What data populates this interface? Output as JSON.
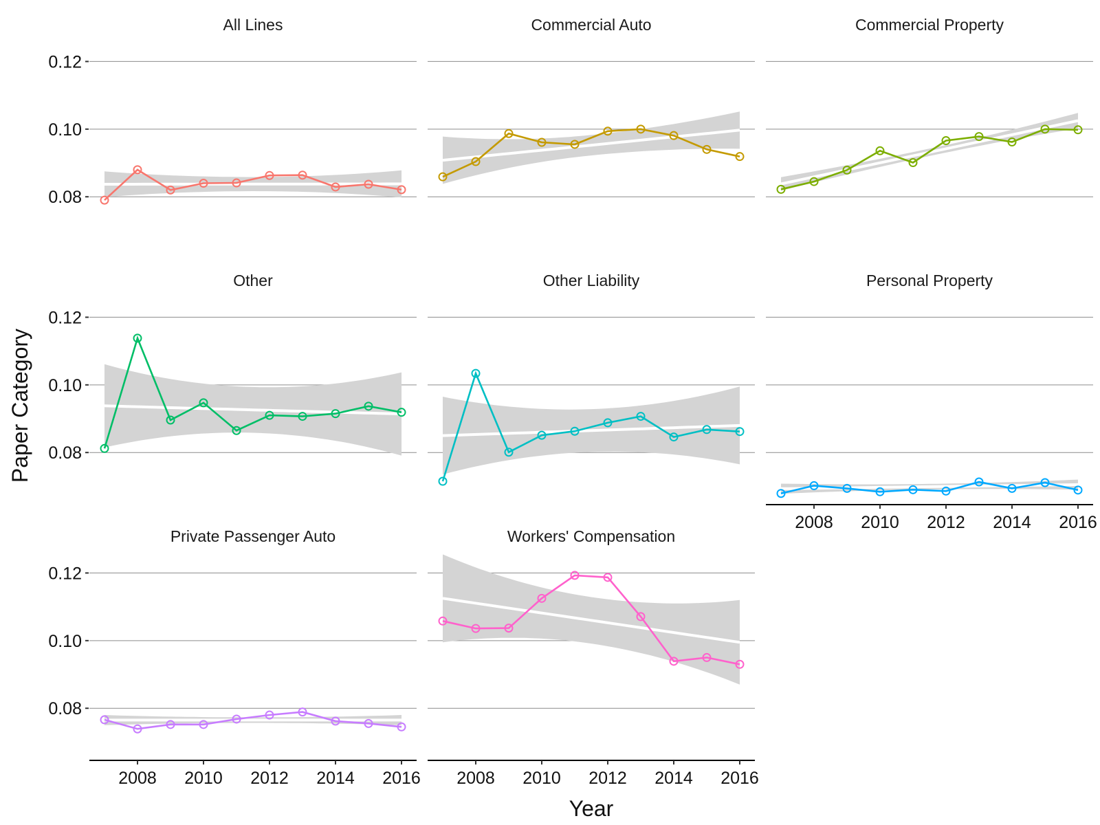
{
  "chart_data": {
    "type": "line",
    "xlabel": "Year",
    "ylabel": "Paper Category",
    "x_ticks": [
      2008,
      2010,
      2012,
      2014,
      2016
    ],
    "y_ticks": [
      0.08,
      0.1,
      0.12
    ],
    "y_tick_labels": [
      "0.08",
      "0.10",
      "0.12"
    ],
    "xlim": [
      2006.6,
      2016.4
    ],
    "ylim": [
      0.065,
      0.127
    ],
    "years": [
      2007,
      2008,
      2009,
      2010,
      2011,
      2012,
      2013,
      2014,
      2015,
      2016
    ],
    "panels": [
      {
        "name": "All Lines",
        "color": "#F8766D",
        "values": [
          0.079,
          0.088,
          0.082,
          0.084,
          0.0841,
          0.0863,
          0.0864,
          0.0829,
          0.0837,
          0.0821
        ],
        "fit": [
          0.0837,
          0.0838
        ],
        "ci_start": 0.0038,
        "ci_end": 0.004
      },
      {
        "name": "Commercial Auto",
        "color": "#C49A00",
        "values": [
          0.0859,
          0.0904,
          0.0987,
          0.0961,
          0.0955,
          0.0994,
          0.1,
          0.0981,
          0.094,
          0.0919
        ],
        "fit": [
          0.0908,
          0.0997
        ],
        "ci_start": 0.007,
        "ci_end": 0.0055
      },
      {
        "name": "Commercial Property",
        "color": "#7CAE00",
        "values": [
          0.0822,
          0.0845,
          0.0879,
          0.0936,
          0.0901,
          0.0966,
          0.0978,
          0.0962,
          0.1,
          0.0998
        ],
        "fit": [
          0.0838,
          0.1025
        ],
        "ci_start": 0.002,
        "ci_end": 0.0023
      },
      {
        "name": "Other",
        "color": "#00BE67",
        "values": [
          0.0812,
          0.1138,
          0.0896,
          0.0947,
          0.0865,
          0.091,
          0.0907,
          0.0915,
          0.0937,
          0.0919
        ],
        "fit": [
          0.0938,
          0.0914
        ],
        "ci_start": 0.0123,
        "ci_end": 0.0123
      },
      {
        "name": "Other Liability",
        "color": "#00BFC4",
        "values": [
          0.0715,
          0.1034,
          0.0801,
          0.0851,
          0.0863,
          0.0888,
          0.0907,
          0.0846,
          0.0868,
          0.0862
        ],
        "fit": [
          0.085,
          0.088
        ],
        "ci_start": 0.0115,
        "ci_end": 0.0115
      },
      {
        "name": "Personal Property",
        "color": "#00A9FF",
        "values": [
          0.0679,
          0.0702,
          0.0694,
          0.0684,
          0.069,
          0.0686,
          0.0713,
          0.0694,
          0.0711,
          0.0689
        ],
        "fit": [
          0.0693,
          0.0705
        ],
        "ci_start": 0.0015,
        "ci_end": 0.0015
      },
      {
        "name": "Private Passenger Auto",
        "color": "#C77CFF",
        "values": [
          0.0766,
          0.0739,
          0.0752,
          0.0752,
          0.0768,
          0.078,
          0.0789,
          0.0762,
          0.0755,
          0.0745
        ],
        "fit": [
          0.0765,
          0.0765
        ],
        "ci_start": 0.0015,
        "ci_end": 0.0015
      },
      {
        "name": "Workers' Compensation",
        "color": "#FF61CC",
        "values": [
          0.1058,
          0.1036,
          0.1037,
          0.1125,
          0.1193,
          0.1187,
          0.1071,
          0.0939,
          0.095,
          0.093
        ],
        "fit": [
          0.1125,
          0.0995
        ],
        "ci_start": 0.013,
        "ci_end": 0.0125
      }
    ]
  }
}
